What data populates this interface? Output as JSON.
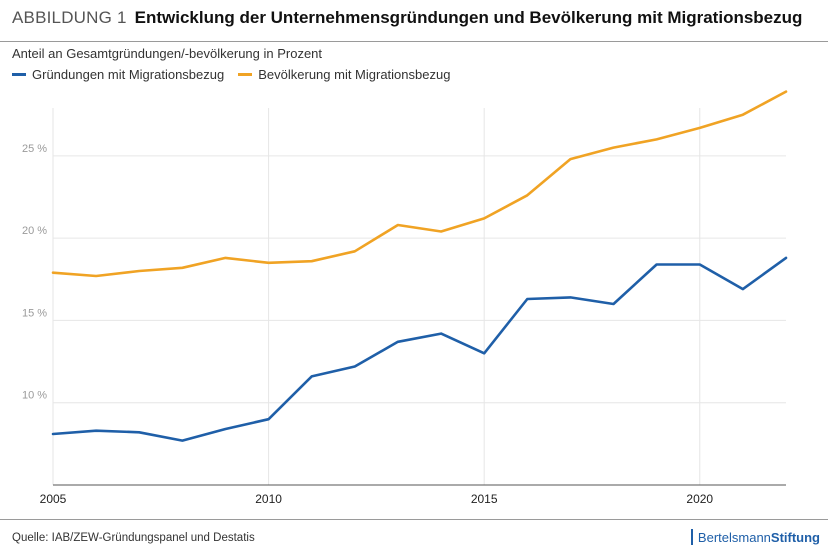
{
  "header": {
    "figure_label": "ABBILDUNG 1",
    "title": "Entwicklung der Unternehmensgründungen und Bevölkerung mit Migrationsbezug"
  },
  "subtitle": "Anteil an Gesamtgründungen/-bevölkerung in Prozent",
  "footer": {
    "source": "Quelle: IAB/ZEW-Gründungspanel und Destatis",
    "logo_part1": "Bertelsmann",
    "logo_part2": "Stiftung"
  },
  "colors": {
    "series_blue": "#1f5fa8",
    "series_orange": "#f0a324",
    "grid": "#e6e6e6"
  },
  "chart_data": {
    "type": "line",
    "title": "Entwicklung der Unternehmensgründungen und Bevölkerung mit Migrationsbezug",
    "ylabel": "Anteil an Gesamtgründungen/-bevölkerung in Prozent",
    "xlabel": "",
    "x": [
      2005,
      2006,
      2007,
      2008,
      2009,
      2010,
      2011,
      2012,
      2013,
      2014,
      2015,
      2016,
      2017,
      2018,
      2019,
      2020,
      2021,
      2022
    ],
    "xlim": [
      2005,
      2022
    ],
    "ylim": [
      5,
      29
    ],
    "x_ticks": [
      2005,
      2010,
      2015,
      2020
    ],
    "x_tick_labels": [
      "2005",
      "2010",
      "2015",
      "2020"
    ],
    "y_ticks": [
      10,
      15,
      20,
      25
    ],
    "y_tick_labels": [
      "10 %",
      "15 %",
      "20 %",
      "25 %"
    ],
    "grid": true,
    "legend_position": "top-left",
    "series": [
      {
        "name": "Gründungen mit Migrationsbezug",
        "color": "#1f5fa8",
        "values": [
          8.1,
          8.3,
          8.2,
          7.7,
          8.4,
          9.0,
          11.6,
          12.2,
          13.7,
          14.2,
          13.0,
          16.3,
          16.4,
          16.0,
          18.4,
          18.4,
          16.9,
          18.8
        ]
      },
      {
        "name": "Bevölkerung mit Migrationsbezug",
        "color": "#f0a324",
        "values": [
          17.9,
          17.7,
          18.0,
          18.2,
          18.8,
          18.5,
          18.6,
          19.2,
          20.8,
          20.4,
          21.2,
          22.6,
          24.8,
          25.5,
          26.0,
          26.7,
          27.5,
          28.9
        ]
      }
    ]
  }
}
